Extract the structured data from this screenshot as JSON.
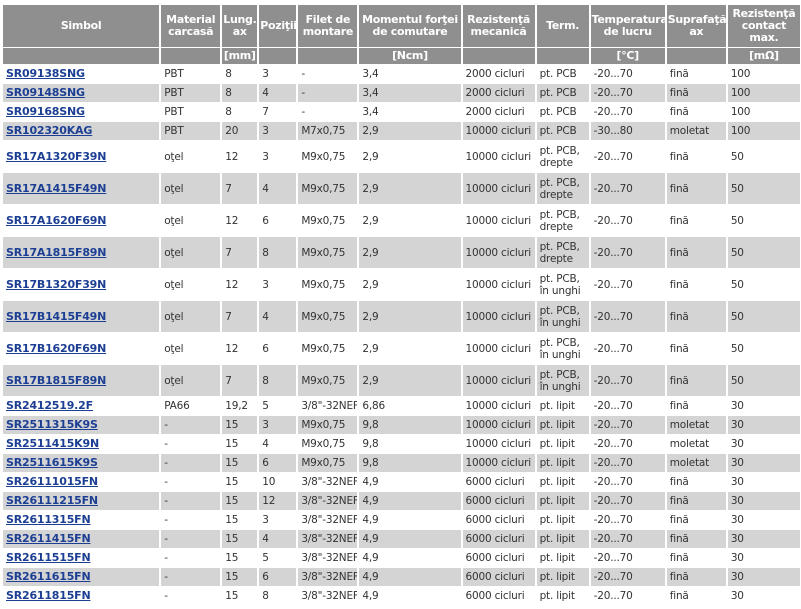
{
  "headers": [
    "Simbol",
    "Material carcasă",
    "Lung. ax",
    "Poziţii",
    "Filet de montare",
    "Momentul forţei de comutare",
    "Rezistenţă mecanică",
    "Term.",
    "Temperatura de lucru",
    "Suprafaţă ax",
    "Rezistenţă contact max."
  ],
  "units": [
    "",
    "",
    "[mm]",
    "",
    "",
    "[Ncm]",
    "",
    "",
    "[°C]",
    "",
    "[mΩ]"
  ],
  "rows": [
    [
      "SR09138SNG",
      "PBT",
      "8",
      "3",
      "-",
      "3,4",
      "2000 cicluri",
      "pt. PCB",
      "-20...70",
      "fină",
      "100"
    ],
    [
      "SR09148SNG",
      "PBT",
      "8",
      "4",
      "-",
      "3,4",
      "2000 cicluri",
      "pt. PCB",
      "-20...70",
      "fină",
      "100"
    ],
    [
      "SR09168SNG",
      "PBT",
      "8",
      "7",
      "-",
      "3,4",
      "2000 cicluri",
      "pt. PCB",
      "-20...70",
      "fină",
      "100"
    ],
    [
      "SR102320KAG",
      "PBT",
      "20",
      "3",
      "M7x0,75",
      "2,9",
      "10000 cicluri",
      "pt. PCB",
      "-30...80",
      "moletat",
      "100"
    ],
    [
      "SR17A1320F39N",
      "oţel",
      "12",
      "3",
      "M9x0,75",
      "2,9",
      "10000 cicluri",
      "pt. PCB, drepte",
      "-20...70",
      "fină",
      "50"
    ],
    [
      "SR17A1415F49N",
      "oţel",
      "7",
      "4",
      "M9x0,75",
      "2,9",
      "10000 cicluri",
      "pt. PCB, drepte",
      "-20...70",
      "fină",
      "50"
    ],
    [
      "SR17A1620F69N",
      "oţel",
      "12",
      "6",
      "M9x0,75",
      "2,9",
      "10000 cicluri",
      "pt. PCB, drepte",
      "-20...70",
      "fină",
      "50"
    ],
    [
      "SR17A1815F89N",
      "oţel",
      "7",
      "8",
      "M9x0,75",
      "2,9",
      "10000 cicluri",
      "pt. PCB, drepte",
      "-20...70",
      "fină",
      "50"
    ],
    [
      "SR17B1320F39N",
      "oţel",
      "12",
      "3",
      "M9x0,75",
      "2,9",
      "10000 cicluri",
      "pt. PCB, în unghi",
      "-20...70",
      "fină",
      "50"
    ],
    [
      "SR17B1415F49N",
      "oţel",
      "7",
      "4",
      "M9x0,75",
      "2,9",
      "10000 cicluri",
      "pt. PCB, în unghi",
      "-20...70",
      "fină",
      "50"
    ],
    [
      "SR17B1620F69N",
      "oţel",
      "12",
      "6",
      "M9x0,75",
      "2,9",
      "10000 cicluri",
      "pt. PCB, în unghi",
      "-20...70",
      "fină",
      "50"
    ],
    [
      "SR17B1815F89N",
      "oţel",
      "7",
      "8",
      "M9x0,75",
      "2,9",
      "10000 cicluri",
      "pt. PCB, în unghi",
      "-20...70",
      "fină",
      "50"
    ],
    [
      "SR2412519.2F",
      "PA66",
      "19,2",
      "5",
      "3/8\"-32NEF",
      "6,86",
      "10000 cicluri",
      "pt. lipit",
      "-20...70",
      "fină",
      "30"
    ],
    [
      "SR2511315K9S",
      "-",
      "15",
      "3",
      "M9x0,75",
      "9,8",
      "10000 cicluri",
      "pt. lipit",
      "-20...70",
      "moletat",
      "30"
    ],
    [
      "SR2511415K9N",
      "-",
      "15",
      "4",
      "M9x0,75",
      "9,8",
      "10000 cicluri",
      "pt. lipit",
      "-20...70",
      "moletat",
      "30"
    ],
    [
      "SR2511615K9S",
      "-",
      "15",
      "6",
      "M9x0,75",
      "9,8",
      "10000 cicluri",
      "pt. lipit",
      "-20...70",
      "moletat",
      "30"
    ],
    [
      "SR26111015FN",
      "-",
      "15",
      "10",
      "3/8\"-32NEF",
      "4,9",
      "6000 cicluri",
      "pt. lipit",
      "-20...70",
      "fină",
      "30"
    ],
    [
      "SR26111215FN",
      "-",
      "15",
      "12",
      "3/8\"-32NEF",
      "4,9",
      "6000 cicluri",
      "pt. lipit",
      "-20...70",
      "fină",
      "30"
    ],
    [
      "SR2611315FN",
      "-",
      "15",
      "3",
      "3/8\"-32NEF",
      "4,9",
      "6000 cicluri",
      "pt. lipit",
      "-20...70",
      "fină",
      "30"
    ],
    [
      "SR2611415FN",
      "-",
      "15",
      "4",
      "3/8\"-32NEF",
      "4,9",
      "6000 cicluri",
      "pt. lipit",
      "-20...70",
      "fină",
      "30"
    ],
    [
      "SR2611515FN",
      "-",
      "15",
      "5",
      "3/8\"-32NEF",
      "4,9",
      "6000 cicluri",
      "pt. lipit",
      "-20...70",
      "fină",
      "30"
    ],
    [
      "SR2611615FN",
      "-",
      "15",
      "6",
      "3/8\"-32NEF",
      "4,9",
      "6000 cicluri",
      "pt. lipit",
      "-20...70",
      "fină",
      "30"
    ],
    [
      "SR2611815FN",
      "-",
      "15",
      "8",
      "3/8\"-32NEF",
      "4,9",
      "6000 cicluri",
      "pt. lipit",
      "-20...70",
      "fină",
      "30"
    ]
  ]
}
